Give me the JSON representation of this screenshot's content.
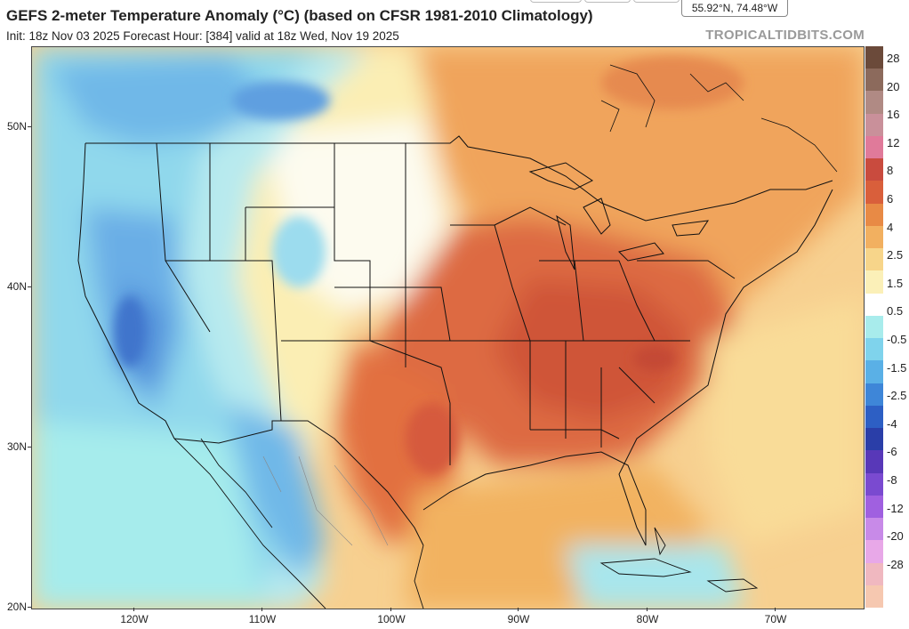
{
  "header": {
    "title": "GEFS 2-meter Temperature Anomaly (°C) (based on CFSR 1981-2010 Climatology)",
    "subtitle": "Init: 18z Nov 03 2025   Forecast Hour: [384]   valid at 18z Wed, Nov 19 2025",
    "brand": "TROPICALTIDBITS.COM",
    "coordinate_readout": "55.92°N, 74.48°W"
  },
  "map": {
    "lat_labels": [
      "50N",
      "40N",
      "30N",
      "20N"
    ],
    "lon_labels": [
      "120W",
      "110W",
      "100W",
      "90W",
      "80W",
      "70W"
    ]
  },
  "legend": {
    "labels": [
      "28",
      "20",
      "16",
      "12",
      "8",
      "6",
      "4",
      "2.5",
      "1.5",
      "0.5",
      "-0.5",
      "-1.5",
      "-2.5",
      "-4",
      "-6",
      "-8",
      "-12",
      "-20",
      "-28"
    ],
    "colors": [
      "#6b4a3a",
      "#8c6a5c",
      "#b08a84",
      "#c9909a",
      "#e07a9a",
      "#c94b3e",
      "#d95f3b",
      "#e88a45",
      "#f2b060",
      "#f7d58a",
      "#fbf0b8",
      "#ffffff",
      "#a8ecec",
      "#7fd3ec",
      "#5ab0e6",
      "#3e86d8",
      "#2d5fc4",
      "#2a3ea8",
      "#5838b8",
      "#7a4ad0",
      "#a060e0",
      "#c88ae8",
      "#e8a8e8",
      "#f0b8c0",
      "#f6c8b0"
    ]
  }
}
